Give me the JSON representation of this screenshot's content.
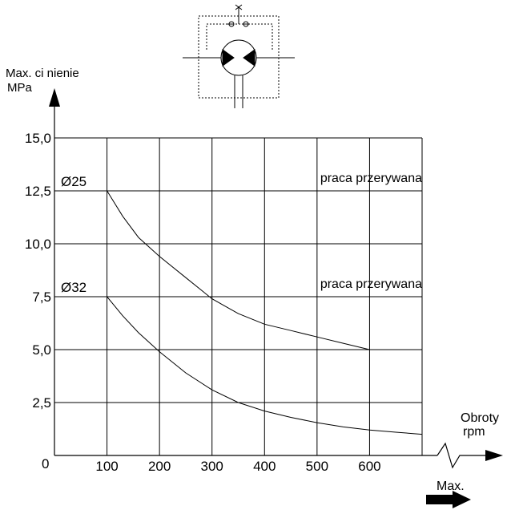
{
  "chart_data": {
    "type": "line",
    "ylabel_line1": "Max. ci nienie",
    "ylabel_line2": "MPa",
    "xlabel_line1": "Obroty",
    "xlabel_line2": "rpm",
    "xmax_label": "Max.",
    "xlim": [
      0,
      700
    ],
    "ylim": [
      0,
      15
    ],
    "x_ticks": [
      {
        "value": 100,
        "label": "100"
      },
      {
        "value": 200,
        "label": "200"
      },
      {
        "value": 300,
        "label": "300"
      },
      {
        "value": 400,
        "label": "400"
      },
      {
        "value": 500,
        "label": "500"
      },
      {
        "value": 600,
        "label": "600"
      }
    ],
    "y_ticks": [
      {
        "value": 2.5,
        "label": "2,5"
      },
      {
        "value": 5,
        "label": "5,0"
      },
      {
        "value": 7.5,
        "label": "7,5"
      },
      {
        "value": 10,
        "label": "10,0"
      },
      {
        "value": 12.5,
        "label": "12,5"
      },
      {
        "value": 15,
        "label": "15,0"
      }
    ],
    "origin_label": "0",
    "grid": true,
    "series": [
      {
        "name": "Ø25",
        "x": [
          0,
          100,
          130,
          160,
          200,
          250,
          300,
          350,
          400,
          450,
          500,
          550,
          600
        ],
        "y": [
          12.5,
          12.5,
          11.3,
          10.3,
          9.4,
          8.4,
          7.4,
          6.7,
          6.2,
          5.9,
          5.6,
          5.3,
          5.0
        ]
      },
      {
        "name": "Ø32",
        "x": [
          0,
          100,
          130,
          160,
          200,
          250,
          300,
          350,
          400,
          450,
          500,
          550,
          600,
          650,
          700
        ],
        "y": [
          7.5,
          7.5,
          6.6,
          5.8,
          4.9,
          3.9,
          3.1,
          2.5,
          2.1,
          1.8,
          1.55,
          1.35,
          1.2,
          1.1,
          1.0
        ]
      }
    ],
    "annotations": [
      {
        "text": "praca przerywana",
        "y": 12.5,
        "style": "long-dash"
      },
      {
        "text": "praca przerywana",
        "y": 7.5,
        "style": "short-dash"
      }
    ]
  }
}
